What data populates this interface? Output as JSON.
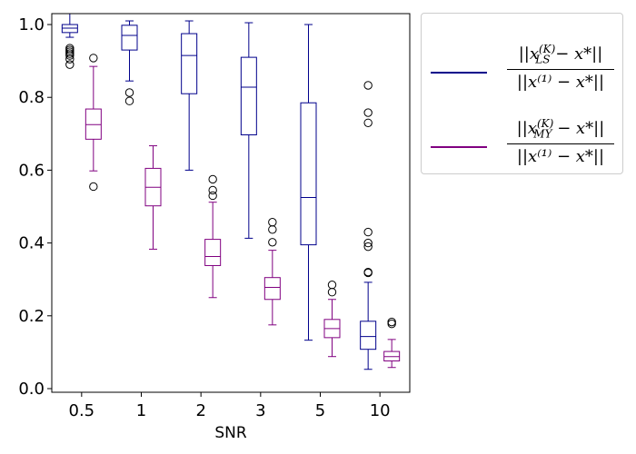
{
  "chart_data": {
    "type": "boxplot",
    "xlabel": "SNR",
    "ylabel": "",
    "categories": [
      "0.5",
      "1",
      "2",
      "3",
      "5",
      "10"
    ],
    "ylim": [
      -0.01,
      1.03
    ],
    "yticks": [
      0.0,
      0.2,
      0.4,
      0.6,
      0.8,
      1.0
    ],
    "ytick_labels": [
      "0.0",
      "0.2",
      "0.4",
      "0.6",
      "0.8",
      "1.0"
    ],
    "series": [
      {
        "name": "LS",
        "color": "#00008b",
        "legend_num_pre": "||x",
        "legend_num_sup": "(K)",
        "legend_num_sub": "LS",
        "legend_num_post": " − x*||",
        "legend_den": "||x⁽¹⁾ − x*||",
        "boxes": [
          {
            "whislo": 0.965,
            "q1": 0.978,
            "med": 0.99,
            "q3": 1.0,
            "whishi": 1.03,
            "fliers": [
              0.935,
              0.93,
              0.925,
              0.92,
              0.915,
              0.905,
              0.89
            ]
          },
          {
            "whislo": 0.845,
            "q1": 0.93,
            "med": 0.97,
            "q3": 0.998,
            "whishi": 1.01,
            "fliers": [
              0.813,
              0.79
            ]
          },
          {
            "whislo": 0.6,
            "q1": 0.81,
            "med": 0.915,
            "q3": 0.975,
            "whishi": 1.01,
            "fliers": []
          },
          {
            "whislo": 0.413,
            "q1": 0.697,
            "med": 0.828,
            "q3": 0.91,
            "whishi": 1.005,
            "fliers": []
          },
          {
            "whislo": 0.133,
            "q1": 0.395,
            "med": 0.525,
            "q3": 0.785,
            "whishi": 1.0,
            "fliers": []
          },
          {
            "whislo": 0.053,
            "q1": 0.108,
            "med": 0.143,
            "q3": 0.185,
            "whishi": 0.292,
            "fliers": [
              0.833,
              0.758,
              0.73,
              0.43,
              0.4,
              0.39,
              0.32,
              0.318
            ]
          }
        ]
      },
      {
        "name": "MY",
        "color": "#800080",
        "legend_num_pre": "||x",
        "legend_num_sup": "(K)",
        "legend_num_sub": "MY",
        "legend_num_post": " − x*||",
        "legend_den": "||x⁽¹⁾ − x*||",
        "boxes": [
          {
            "whislo": 0.598,
            "q1": 0.685,
            "med": 0.725,
            "q3": 0.768,
            "whishi": 0.885,
            "fliers": [
              0.908,
              0.555
            ]
          },
          {
            "whislo": 0.383,
            "q1": 0.502,
            "med": 0.553,
            "q3": 0.605,
            "whishi": 0.667,
            "fliers": []
          },
          {
            "whislo": 0.25,
            "q1": 0.338,
            "med": 0.363,
            "q3": 0.41,
            "whishi": 0.512,
            "fliers": [
              0.575,
              0.545,
              0.53
            ]
          },
          {
            "whislo": 0.175,
            "q1": 0.245,
            "med": 0.278,
            "q3": 0.305,
            "whishi": 0.38,
            "fliers": [
              0.457,
              0.437,
              0.402
            ]
          },
          {
            "whislo": 0.088,
            "q1": 0.14,
            "med": 0.165,
            "q3": 0.19,
            "whishi": 0.245,
            "fliers": [
              0.285,
              0.265
            ]
          },
          {
            "whislo": 0.058,
            "q1": 0.076,
            "med": 0.088,
            "q3": 0.102,
            "whishi": 0.135,
            "fliers": [
              0.183,
              0.178
            ]
          }
        ]
      }
    ]
  }
}
